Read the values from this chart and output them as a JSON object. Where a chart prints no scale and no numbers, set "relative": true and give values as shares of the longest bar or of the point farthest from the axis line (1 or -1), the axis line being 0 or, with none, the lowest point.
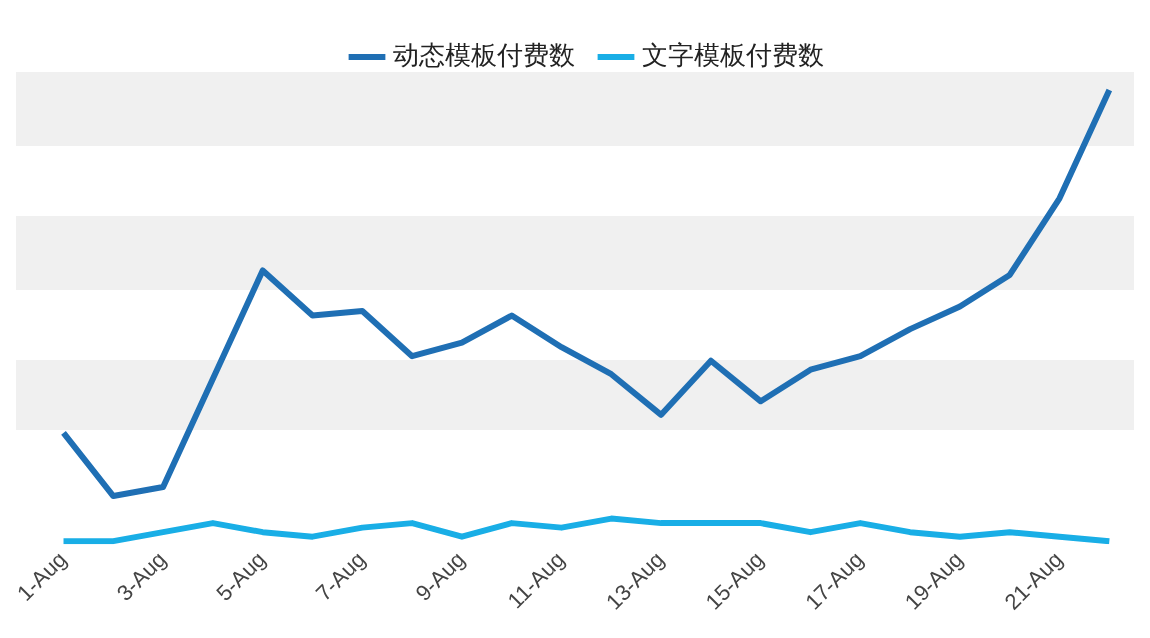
{
  "chart_data": {
    "type": "line",
    "relative": true,
    "legend": "top",
    "grid": false,
    "marker": "none",
    "categories": [
      "1-Aug",
      null,
      "3-Aug",
      null,
      "5-Aug",
      null,
      "7-Aug",
      null,
      "9-Aug",
      null,
      "11-Aug",
      null,
      "13-Aug",
      null,
      "15-Aug",
      null,
      "17-Aug",
      null,
      "19-Aug",
      null,
      "21-Aug",
      null
    ],
    "series": [
      {
        "name": "动态模板付费数",
        "color": "#1f6fb4",
        "values": [
          0.24,
          0.1,
          0.12,
          0.36,
          0.6,
          0.5,
          0.51,
          0.41,
          0.44,
          0.5,
          0.43,
          0.37,
          0.28,
          0.4,
          0.31,
          0.38,
          0.41,
          0.47,
          0.52,
          0.59,
          0.76,
          1
        ]
      },
      {
        "name": "文字模板付费数",
        "color": "#19aee6",
        "values": [
          0,
          0,
          0.02,
          0.04,
          0.02,
          0.01,
          0.03,
          0.04,
          0.01,
          0.04,
          0.03,
          0.05,
          0.04,
          0.04,
          0.04,
          0.02,
          0.04,
          0.02,
          0.01,
          0.02,
          0.01,
          0
        ]
      }
    ]
  }
}
